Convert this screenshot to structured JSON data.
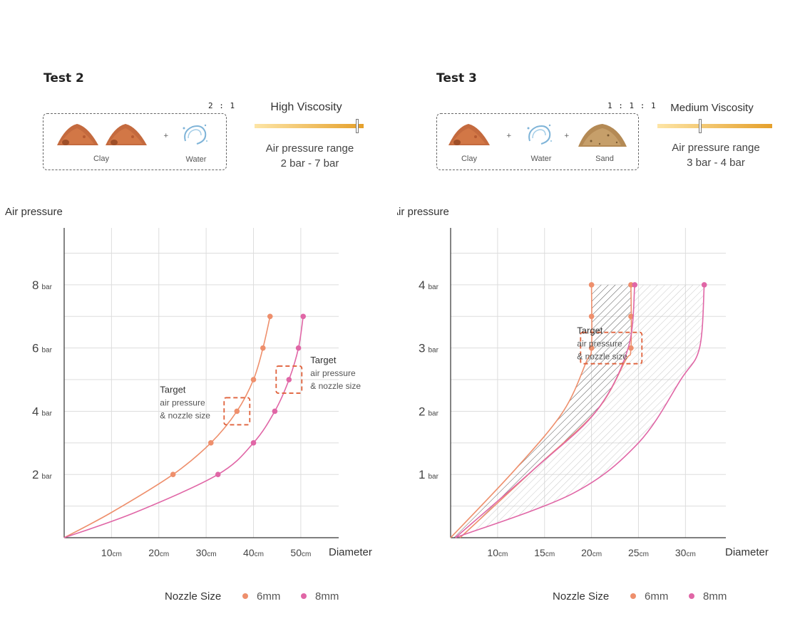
{
  "colors": {
    "orange": "#ee8f6c",
    "pink": "#e066a6",
    "target": "#e0623c",
    "grid": "#dddddd",
    "axis": "#333333",
    "gradient_start": "#fde5a6",
    "gradient_end": "#e5a02b"
  },
  "panels": [
    {
      "title": "Test 2",
      "ratio": "2 : 1",
      "ingredients": [
        {
          "name": "Clay",
          "icon": "clay-pile-icon"
        },
        {
          "name": "",
          "icon": "clay-pile-icon"
        },
        {
          "name": "Water",
          "icon": "water-splash-icon"
        }
      ],
      "viscosity": {
        "label": "High Viscosity",
        "level": 0.94
      },
      "pressure_range": {
        "line1": "Air pressure range",
        "line2": "2 bar - 7 bar"
      }
    },
    {
      "title": "Test 3",
      "ratio": "1 : 1 : 1",
      "ingredients": [
        {
          "name": "Clay",
          "icon": "clay-pile-icon"
        },
        {
          "name": "Water",
          "icon": "water-splash-icon"
        },
        {
          "name": "Sand",
          "icon": "sand-pile-icon"
        }
      ],
      "viscosity": {
        "label": "Medium Viscosity",
        "level": 0.37
      },
      "pressure_range": {
        "line1": "Air pressure range",
        "line2": "3 bar - 4 bar"
      }
    }
  ],
  "chart_data": [
    {
      "type": "line",
      "title": "Test 2",
      "ylabel": "Air pressure",
      "xlabel": "Diameter",
      "xlim": [
        0,
        58
      ],
      "ylim": [
        0,
        9.8
      ],
      "xticks": [
        {
          "v": 10,
          "num": "10",
          "unit": "cm"
        },
        {
          "v": 20,
          "num": "20",
          "unit": "cm"
        },
        {
          "v": 30,
          "num": "30",
          "unit": "cm"
        },
        {
          "v": 40,
          "num": "40",
          "unit": "cm"
        },
        {
          "v": 50,
          "num": "50",
          "unit": "cm"
        }
      ],
      "yticks": [
        {
          "v": 2,
          "num": "2",
          "unit": "bar"
        },
        {
          "v": 4,
          "num": "4",
          "unit": "bar"
        },
        {
          "v": 6,
          "num": "6",
          "unit": "bar"
        },
        {
          "v": 8,
          "num": "8",
          "unit": "bar"
        }
      ],
      "series": [
        {
          "name": "6mm",
          "color": "#ee8f6c",
          "points": [
            [
              23,
              2
            ],
            [
              31,
              3
            ],
            [
              36.5,
              4
            ],
            [
              40,
              5
            ],
            [
              42,
              6
            ],
            [
              43.5,
              7
            ]
          ],
          "curve": [
            [
              0,
              0
            ],
            [
              10,
              0.8
            ],
            [
              23,
              2
            ],
            [
              31,
              3
            ],
            [
              36.5,
              4
            ],
            [
              40,
              5
            ],
            [
              42,
              6
            ],
            [
              43.5,
              7
            ]
          ]
        },
        {
          "name": "8mm",
          "color": "#e066a6",
          "points": [
            [
              32.5,
              2
            ],
            [
              40,
              3
            ],
            [
              44.5,
              4
            ],
            [
              47.5,
              5
            ],
            [
              49.5,
              6
            ],
            [
              50.5,
              7
            ]
          ],
          "curve": [
            [
              0,
              0
            ],
            [
              15,
              0.8
            ],
            [
              32.5,
              2
            ],
            [
              40,
              3
            ],
            [
              44.5,
              4
            ],
            [
              47.5,
              5
            ],
            [
              49.5,
              6
            ],
            [
              50.5,
              7
            ]
          ]
        }
      ],
      "targets": [
        {
          "x": 36.5,
          "y": 4,
          "title": "Target",
          "line1": "air pressure",
          "line2": "& nozzle size",
          "label_side": "left"
        },
        {
          "x": 47.5,
          "y": 5,
          "title": "Target",
          "line1": "air pressure",
          "line2": "& nozzle size",
          "label_side": "right"
        }
      ],
      "legend": {
        "title": "Nozzle Size",
        "items": [
          {
            "label": "6mm",
            "color": "#ee8f6c"
          },
          {
            "label": "8mm",
            "color": "#e066a6"
          }
        ]
      }
    },
    {
      "type": "line",
      "title": "Test 3",
      "ylabel": "Air pressure",
      "xlabel": "Diameter",
      "xlim": [
        5,
        34.3
      ],
      "ylim": [
        0,
        4.9
      ],
      "xticks": [
        {
          "v": 10,
          "num": "10",
          "unit": "cm"
        },
        {
          "v": 15,
          "num": "15",
          "unit": "cm"
        },
        {
          "v": 20,
          "num": "20",
          "unit": "cm"
        },
        {
          "v": 25,
          "num": "25",
          "unit": "cm"
        },
        {
          "v": 30,
          "num": "30",
          "unit": "cm"
        }
      ],
      "yticks": [
        {
          "v": 1,
          "num": "1",
          "unit": "bar"
        },
        {
          "v": 2,
          "num": "2",
          "unit": "bar"
        },
        {
          "v": 3,
          "num": "3",
          "unit": "bar"
        },
        {
          "v": 4,
          "num": "4",
          "unit": "bar"
        }
      ],
      "series": [
        {
          "name": "6mm",
          "color": "#ee8f6c",
          "points": [
            [
              20,
              3
            ],
            [
              20,
              3.5
            ],
            [
              20,
              4
            ]
          ],
          "curve": [
            [
              5,
              0
            ],
            [
              12,
              1.1
            ],
            [
              17,
              2
            ],
            [
              19.5,
              2.8
            ],
            [
              20,
              3
            ],
            [
              20,
              4
            ]
          ]
        },
        {
          "name": "6mm",
          "color": "#ee8f6c",
          "points": [
            [
              24.2,
              3
            ],
            [
              24.2,
              3.5
            ],
            [
              24.2,
              4
            ]
          ],
          "curve": [
            [
              6,
              0
            ],
            [
              14,
              1.1
            ],
            [
              20.5,
              2
            ],
            [
              23.6,
              2.8
            ],
            [
              24.2,
              3
            ],
            [
              24.2,
              4
            ]
          ]
        },
        {
          "name": "8mm",
          "color": "#e066a6",
          "points": [
            [
              24.6,
              4
            ]
          ],
          "curve": [
            [
              5.5,
              0
            ],
            [
              14,
              1.1
            ],
            [
              20.5,
              2
            ],
            [
              23.9,
              3
            ],
            [
              24.6,
              4
            ]
          ]
        },
        {
          "name": "8mm",
          "color": "#e066a6",
          "points": [
            [
              32,
              4
            ]
          ],
          "curve": [
            [
              5.5,
              0
            ],
            [
              18,
              0.7
            ],
            [
              25,
              1.5
            ],
            [
              29.5,
              2.5
            ],
            [
              31.5,
              3
            ],
            [
              32,
              4
            ]
          ]
        }
      ],
      "bands": [
        {
          "style": "dark",
          "left": [
            [
              5,
              0
            ],
            [
              12,
              1.1
            ],
            [
              17,
              2
            ],
            [
              19.5,
              2.8
            ],
            [
              20,
              3
            ],
            [
              20,
              4
            ]
          ],
          "right": [
            [
              6,
              0
            ],
            [
              14,
              1.1
            ],
            [
              20.5,
              2
            ],
            [
              23.6,
              2.8
            ],
            [
              24.2,
              3
            ],
            [
              24.2,
              4
            ]
          ]
        },
        {
          "style": "light",
          "left": [
            [
              5.5,
              0
            ],
            [
              14,
              1.1
            ],
            [
              20.5,
              2
            ],
            [
              23.9,
              3
            ],
            [
              24.6,
              4
            ]
          ],
          "right": [
            [
              5.5,
              0
            ],
            [
              18,
              0.7
            ],
            [
              25,
              1.5
            ],
            [
              29.5,
              2.5
            ],
            [
              31.5,
              3
            ],
            [
              32,
              4
            ]
          ]
        }
      ],
      "targets": [
        {
          "x": 22.1,
          "y": 3,
          "title": "Target",
          "line1": "air pressure",
          "line2": "& nozzle size",
          "label_side": "left",
          "wide": true
        }
      ],
      "legend": {
        "title": "Nozzle Size",
        "items": [
          {
            "label": "6mm",
            "color": "#ee8f6c"
          },
          {
            "label": "8mm",
            "color": "#e066a6"
          }
        ]
      }
    }
  ]
}
